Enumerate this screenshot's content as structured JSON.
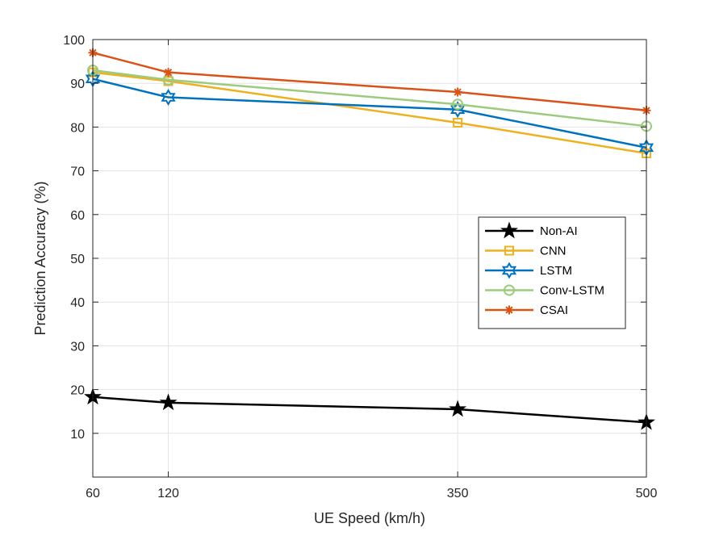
{
  "chart_data": {
    "type": "line",
    "title": "",
    "xlabel": "UE Speed (km/h)",
    "ylabel": "Prediction Accuracy (%)",
    "x": [
      60,
      120,
      350,
      500
    ],
    "xlim": [
      60,
      500
    ],
    "ylim": [
      0,
      100
    ],
    "xticks": [
      "60",
      "120",
      "350",
      "500"
    ],
    "yticks": [
      "10",
      "20",
      "30",
      "40",
      "50",
      "60",
      "70",
      "80",
      "90",
      "100"
    ],
    "grid": true,
    "legend_position": "right-center",
    "series": [
      {
        "name": "Non-AI",
        "values": [
          18.3,
          17.0,
          15.5,
          12.5
        ],
        "color": "#000000",
        "marker": "star-filled"
      },
      {
        "name": "CNN",
        "values": [
          92.5,
          90.5,
          81.0,
          74.0
        ],
        "color": "#EDB120",
        "marker": "square"
      },
      {
        "name": "LSTM",
        "values": [
          91.0,
          86.8,
          84.0,
          75.3
        ],
        "color": "#0072BD",
        "marker": "hexagram"
      },
      {
        "name": "Conv-LSTM",
        "values": [
          93.0,
          90.8,
          85.2,
          80.2
        ],
        "color": "#9CCB7F",
        "marker": "circle"
      },
      {
        "name": "CSAI",
        "values": [
          97.0,
          92.5,
          88.0,
          83.8
        ],
        "color": "#D95319",
        "marker": "asterisk"
      }
    ]
  }
}
